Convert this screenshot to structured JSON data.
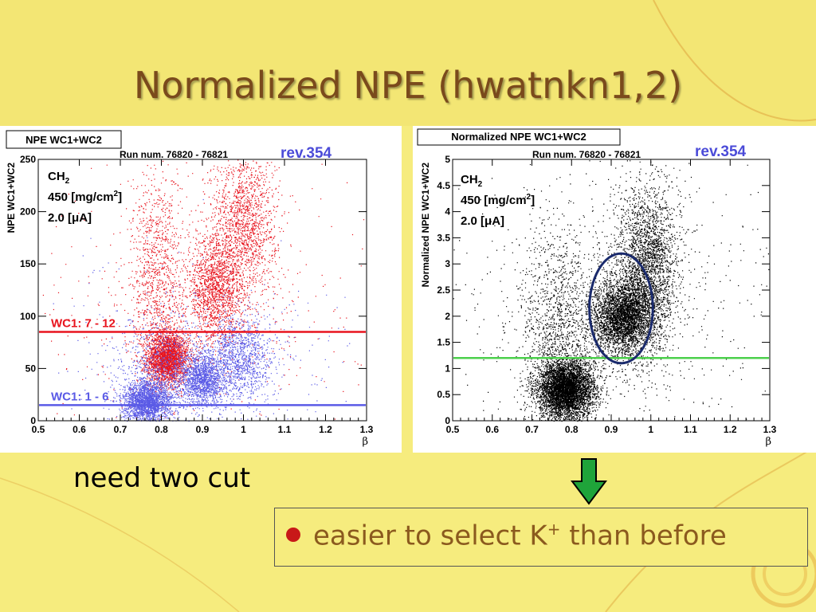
{
  "slide": {
    "title": "Normalized NPE (hwatnkn1,2)",
    "note": "need two cut",
    "bullet_pre": "easier to select K",
    "bullet_sup": "+",
    "bullet_post": " than before",
    "bullet_color": "#c81818",
    "arrow_color": "#1fa43a",
    "icons": [
      "bullet-dot",
      "down-arrow-icon"
    ]
  },
  "chart_data": [
    {
      "type": "scatter",
      "title": "NPE WC1+WC2",
      "run_label": "Run num. 76820 - 76821",
      "rev_label": "rev.354",
      "info": {
        "line1": "CH",
        "line1_sub": "2",
        "line2": "450 [mg/cm",
        "line2_sup": "2",
        "line2_end": "]",
        "line3": "2.0 [μA]"
      },
      "xlabel": "β",
      "ylabel": "NPE WC1+WC2",
      "xlim": [
        0.5,
        1.3
      ],
      "ylim": [
        0,
        250
      ],
      "xticks": [
        "0.5",
        "0.6",
        "0.7",
        "0.8",
        "0.9",
        "1",
        "1.1",
        "1.2",
        "1.3"
      ],
      "yticks": [
        "0",
        "50",
        "100",
        "150",
        "200",
        "250"
      ],
      "series": [
        {
          "name": "WC1: 7 - 12",
          "color": "#e8141e",
          "clusters": [
            {
              "cx": 0.815,
              "cy": 60,
              "sx": 0.025,
              "sy": 12,
              "n": 2600
            },
            {
              "cx": 0.93,
              "cy": 125,
              "sx": 0.035,
              "sy": 25,
              "n": 1600
            },
            {
              "cx": 1.0,
              "cy": 190,
              "sx": 0.04,
              "sy": 35,
              "n": 1500
            },
            {
              "cx": 0.79,
              "cy": 130,
              "sx": 0.03,
              "sy": 55,
              "n": 1100
            },
            {
              "cx": 0.9,
              "cy": 125,
              "sx": 0.2,
              "sy": 70,
              "n": 600
            }
          ]
        },
        {
          "name": "WC1: 1 - 6",
          "color": "#5a5ae6",
          "clusters": [
            {
              "cx": 0.765,
              "cy": 18,
              "sx": 0.03,
              "sy": 10,
              "n": 2200
            },
            {
              "cx": 0.9,
              "cy": 40,
              "sx": 0.03,
              "sy": 12,
              "n": 1500
            },
            {
              "cx": 0.99,
              "cy": 60,
              "sx": 0.04,
              "sy": 20,
              "n": 1200
            },
            {
              "cx": 0.8,
              "cy": 50,
              "sx": 0.05,
              "sy": 25,
              "n": 600
            },
            {
              "cx": 0.9,
              "cy": 60,
              "sx": 0.2,
              "sy": 45,
              "n": 400
            }
          ]
        }
      ],
      "cut_lines": [
        {
          "label": "WC1: 7 - 12",
          "y": 85,
          "color": "#e8141e"
        },
        {
          "label": "WC1: 1 - 6",
          "y": 15,
          "color": "#5a5ae6"
        }
      ]
    },
    {
      "type": "scatter",
      "title": "Normalized NPE WC1+WC2",
      "run_label": "Run num. 76820 - 76821",
      "rev_label": "rev.354",
      "info": {
        "line1": "CH",
        "line1_sub": "2",
        "line2": "450 [mg/cm",
        "line2_sup": "2",
        "line2_end": "]",
        "line3": "2.0 [μA]"
      },
      "xlabel": "β",
      "ylabel": "Normalized NPE WC1+WC2",
      "xlim": [
        0.5,
        1.3
      ],
      "ylim": [
        0,
        5
      ],
      "xticks": [
        "0.5",
        "0.6",
        "0.7",
        "0.8",
        "0.9",
        "1",
        "1.1",
        "1.2",
        "1.3"
      ],
      "yticks": [
        "0",
        "0.5",
        "1",
        "1.5",
        "2",
        "2.5",
        "3",
        "3.5",
        "4",
        "4.5",
        "5"
      ],
      "series": [
        {
          "name": "",
          "color": "#000000",
          "clusters": [
            {
              "cx": 0.785,
              "cy": 0.6,
              "sx": 0.035,
              "sy": 0.28,
              "n": 5000
            },
            {
              "cx": 0.93,
              "cy": 2.0,
              "sx": 0.04,
              "sy": 0.35,
              "n": 3500
            },
            {
              "cx": 0.99,
              "cy": 3.0,
              "sx": 0.04,
              "sy": 0.8,
              "n": 2500
            },
            {
              "cx": 0.77,
              "cy": 1.8,
              "sx": 0.05,
              "sy": 0.9,
              "n": 1200
            },
            {
              "cx": 0.9,
              "cy": 2.2,
              "sx": 0.2,
              "sy": 1.4,
              "n": 900
            }
          ]
        }
      ],
      "cut_lines": [
        {
          "label": "",
          "y": 1.2,
          "color": "#4cd04c"
        }
      ],
      "ellipse": {
        "cx": 0.925,
        "cy": 2.15,
        "rx": 0.08,
        "ry": 1.05,
        "color": "#1a2a6c"
      }
    }
  ]
}
